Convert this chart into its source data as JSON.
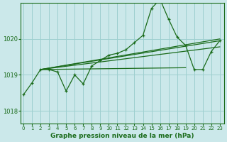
{
  "title": "Graphe pression niveau de la mer (hPa)",
  "bg_color": "#cbe8ea",
  "grid_color": "#9dcfcf",
  "line_color": "#1a6b1a",
  "x_ticks": [
    0,
    1,
    2,
    3,
    4,
    5,
    6,
    7,
    8,
    9,
    10,
    11,
    12,
    13,
    14,
    15,
    16,
    17,
    18,
    19,
    20,
    21,
    22,
    23
  ],
  "y_ticks": [
    1018,
    1019,
    1020
  ],
  "ylim": [
    1017.65,
    1021.0
  ],
  "xlim": [
    -0.3,
    23.5
  ],
  "main_series": [
    1018.45,
    1018.78,
    1019.15,
    1019.15,
    1019.08,
    1018.55,
    1019.0,
    1018.75,
    1019.25,
    1019.4,
    1019.55,
    1019.6,
    1019.7,
    1019.9,
    1020.1,
    1020.85,
    1021.1,
    1020.55,
    1020.05,
    1019.82,
    1019.15,
    1019.15,
    1019.65,
    1019.95
  ],
  "straight_lines": [
    {
      "x0": 2,
      "y0": 1019.15,
      "x1": 23,
      "y1": 1020.0
    },
    {
      "x0": 2,
      "y0": 1019.15,
      "x1": 23,
      "y1": 1019.95
    },
    {
      "x0": 2,
      "y0": 1019.15,
      "x1": 23,
      "y1": 1019.78
    },
    {
      "x0": 2,
      "y0": 1019.15,
      "x1": 19,
      "y1": 1019.2
    }
  ]
}
